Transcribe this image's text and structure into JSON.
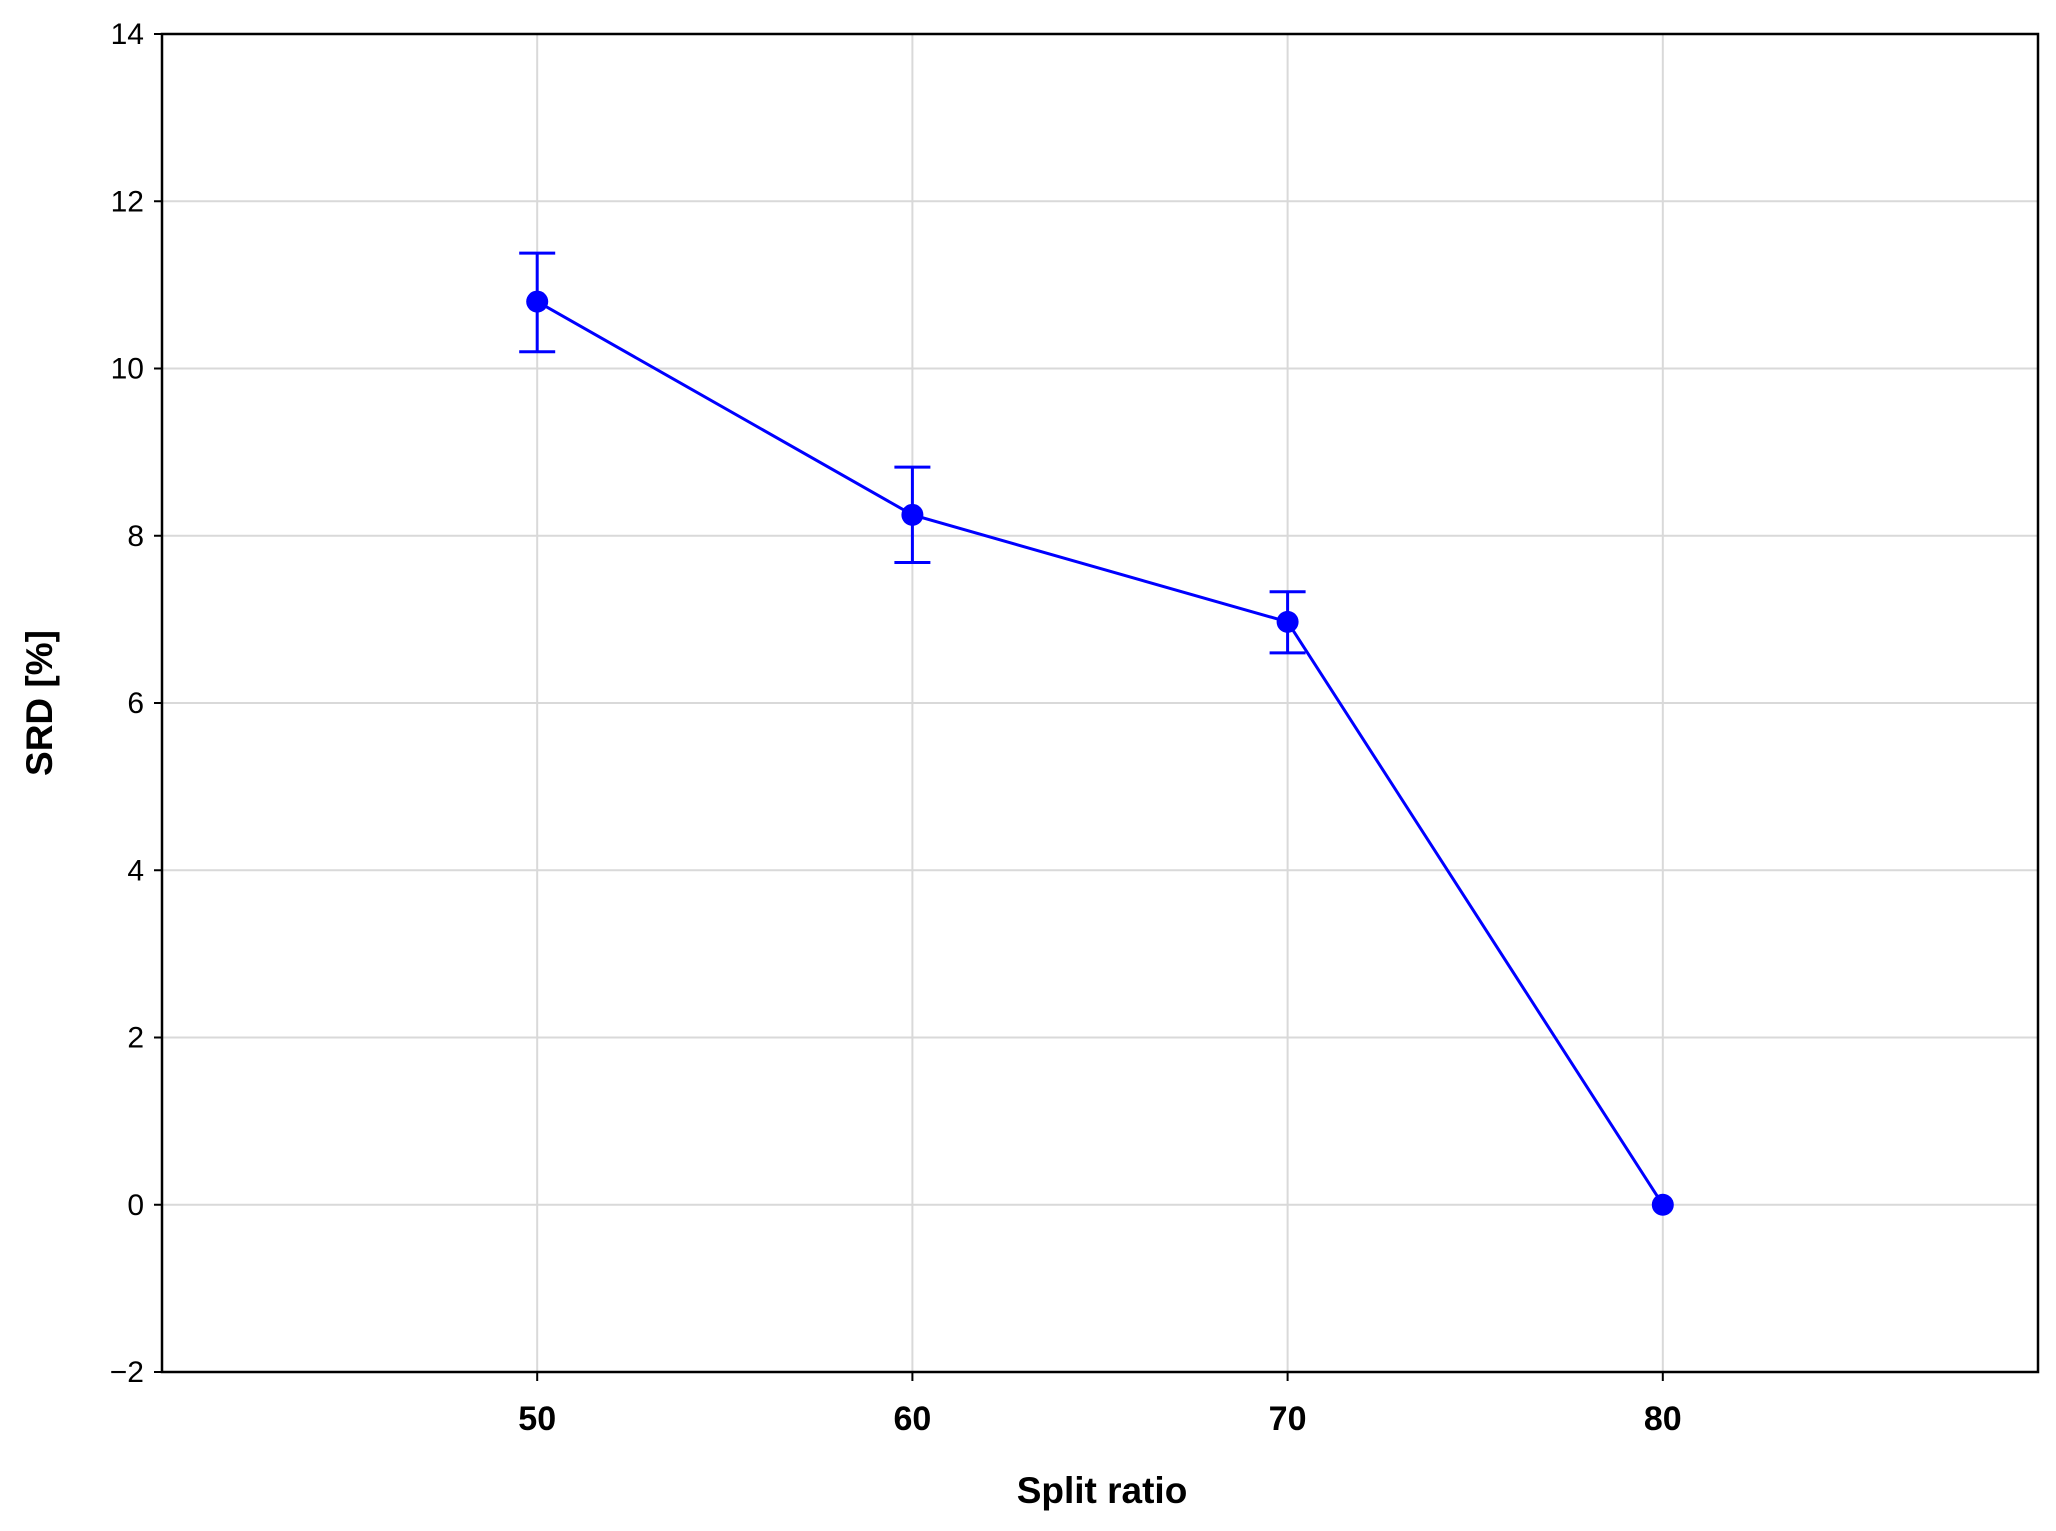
{
  "chart_data": {
    "type": "line",
    "title": "",
    "xlabel": "Split ratio",
    "ylabel": "SRD [%]",
    "x_categories": [
      "50",
      "60",
      "70",
      "80"
    ],
    "x": [
      50,
      60,
      70,
      80
    ],
    "xlim": [
      40,
      90
    ],
    "ylim": [
      -2,
      14
    ],
    "y_ticks": [
      -2,
      0,
      2,
      4,
      6,
      8,
      10,
      12,
      14
    ],
    "y_tick_labels": [
      "−2",
      "0",
      "2",
      "4",
      "6",
      "8",
      "10",
      "12",
      "14"
    ],
    "grid": true,
    "legend": "none",
    "series": [
      {
        "values": [
          10.8,
          8.25,
          6.97,
          0.0
        ],
        "error_upper": [
          11.38,
          8.82,
          7.33,
          0.0
        ],
        "error_lower": [
          10.2,
          7.68,
          6.6,
          0.0
        ],
        "color": "#0000ff"
      }
    ]
  }
}
